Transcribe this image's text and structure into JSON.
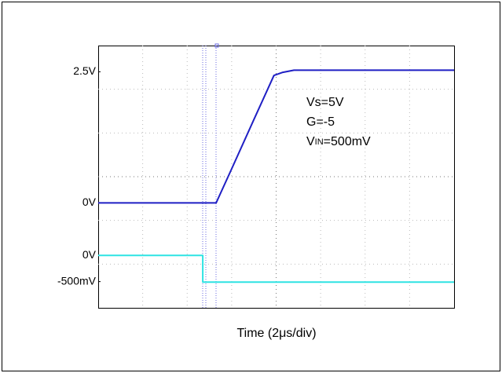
{
  "chart_data": {
    "type": "line",
    "x_label": "Time (2μs/div)",
    "annotations": [
      "Vs=5V",
      "G=-5"
    ],
    "vin_annotation": {
      "main": "V",
      "sub": "IN",
      "rest": "=500mV"
    },
    "xlim": [
      0,
      16
    ],
    "ylim": [
      -2,
      3
    ],
    "yticks": [
      {
        "value": 2.5,
        "label": "2.5V"
      },
      {
        "value": 0,
        "label": "0V"
      }
    ],
    "y2lim": [
      -1,
      4
    ],
    "y2ticks": [
      {
        "value": 0,
        "label": "0V"
      },
      {
        "value": -0.5,
        "label": "-500mV"
      }
    ],
    "series": [
      {
        "color": "#1f1fc4",
        "x": [
          0,
          5.3,
          6.0,
          7.0,
          7.9,
          8.3,
          8.8,
          10,
          12,
          14,
          16
        ],
        "values": [
          0,
          0,
          0.65,
          1.59,
          2.43,
          2.49,
          2.53,
          2.53,
          2.53,
          2.53,
          2.53
        ]
      },
      {
        "color": "#2ee3e3",
        "axis": "y2",
        "x": [
          0,
          4.7,
          4.7,
          16
        ],
        "values": [
          0,
          0,
          -0.51,
          -0.51
        ]
      }
    ]
  }
}
